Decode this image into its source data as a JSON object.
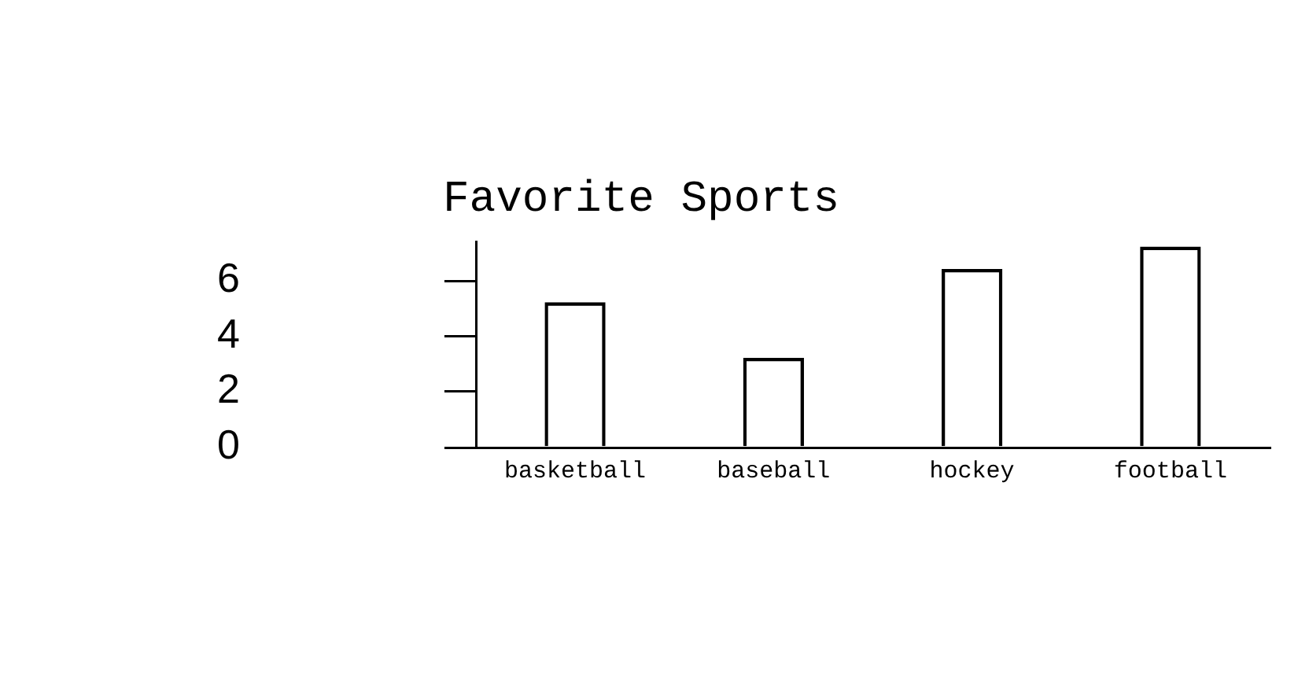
{
  "chart_data": {
    "type": "bar",
    "title": "Favorite Sports",
    "categories": [
      "basketball",
      "baseball",
      "hockey",
      "football"
    ],
    "values": [
      5.2,
      3.2,
      6.4,
      7.2
    ],
    "color": "#000000",
    "ylim": [
      0,
      7.4
    ],
    "yticks": [
      0,
      2,
      4,
      6
    ],
    "grid": false,
    "legend": false
  }
}
